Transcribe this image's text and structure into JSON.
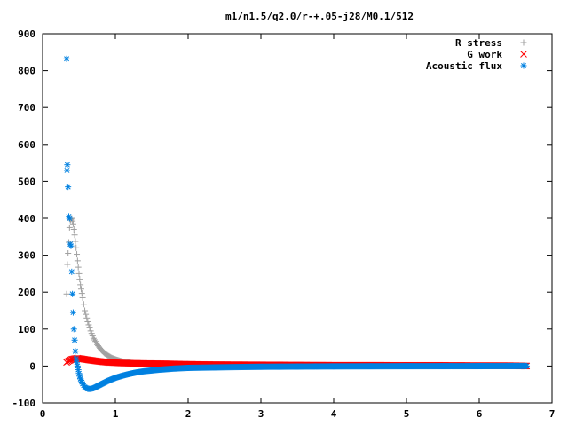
{
  "chart_data": {
    "type": "scatter",
    "title": "m1/n1.5/q2.0/r-+.05-j28/M0.1/512",
    "xlabel": "",
    "ylabel": "",
    "xlim": [
      0,
      7
    ],
    "ylim": [
      -100,
      900
    ],
    "xticks": [
      "0",
      "1",
      "2",
      "3",
      "4",
      "5",
      "6",
      "7"
    ],
    "yticks": [
      "-100",
      "0",
      "100",
      "200",
      "300",
      "400",
      "500",
      "600",
      "700",
      "800",
      "900"
    ],
    "grid": false,
    "legend_position": "top-right",
    "series": [
      {
        "name": "R stress",
        "marker": "+",
        "color": "#a0a0a0",
        "points": [
          [
            0.33,
            195
          ],
          [
            0.34,
            275
          ],
          [
            0.36,
            335
          ],
          [
            0.37,
            375
          ],
          [
            0.38,
            395
          ],
          [
            0.4,
            400
          ],
          [
            0.42,
            385
          ],
          [
            0.44,
            355
          ],
          [
            0.46,
            320
          ],
          [
            0.48,
            285
          ],
          [
            0.5,
            250
          ],
          [
            0.52,
            220
          ],
          [
            0.55,
            185
          ],
          [
            0.58,
            150
          ],
          [
            0.62,
            120
          ],
          [
            0.66,
            95
          ],
          [
            0.7,
            75
          ],
          [
            0.75,
            58
          ],
          [
            0.8,
            45
          ],
          [
            0.85,
            35
          ],
          [
            0.9,
            28
          ],
          [
            0.95,
            22
          ],
          [
            1.0,
            18
          ],
          [
            1.1,
            12
          ],
          [
            1.2,
            9
          ],
          [
            1.3,
            6
          ],
          [
            1.4,
            5
          ],
          [
            1.6,
            3
          ],
          [
            1.8,
            2
          ],
          [
            2.0,
            1.5
          ],
          [
            2.5,
            1
          ],
          [
            3.0,
            0.5
          ],
          [
            4.0,
            0.2
          ],
          [
            5.0,
            0.1
          ],
          [
            6.0,
            0.05
          ],
          [
            6.65,
            0
          ]
        ]
      },
      {
        "name": "G work",
        "marker": "x",
        "color": "#ff0000",
        "points": [
          [
            0.33,
            10
          ],
          [
            0.36,
            14
          ],
          [
            0.4,
            18
          ],
          [
            0.44,
            20
          ],
          [
            0.48,
            21
          ],
          [
            0.52,
            20
          ],
          [
            0.58,
            18
          ],
          [
            0.65,
            16
          ],
          [
            0.72,
            14
          ],
          [
            0.8,
            12
          ],
          [
            0.9,
            10
          ],
          [
            1.0,
            9
          ],
          [
            1.1,
            8
          ],
          [
            1.2,
            7.5
          ],
          [
            1.35,
            7
          ],
          [
            1.5,
            6.5
          ],
          [
            1.7,
            6
          ],
          [
            1.9,
            5
          ],
          [
            2.2,
            4
          ],
          [
            2.6,
            3.5
          ],
          [
            3.0,
            3
          ],
          [
            3.5,
            2.5
          ],
          [
            4.0,
            2
          ],
          [
            4.5,
            2
          ],
          [
            5.0,
            1.5
          ],
          [
            5.5,
            1.5
          ],
          [
            6.0,
            1
          ],
          [
            6.4,
            1
          ],
          [
            6.65,
            0
          ]
        ]
      },
      {
        "name": "Acoustic flux",
        "marker": "*",
        "color": "#0080e0",
        "points": [
          [
            0.33,
            832
          ],
          [
            0.34,
            545
          ],
          [
            0.335,
            530
          ],
          [
            0.35,
            485
          ],
          [
            0.36,
            405
          ],
          [
            0.37,
            400
          ],
          [
            0.38,
            330
          ],
          [
            0.39,
            325
          ],
          [
            0.4,
            255
          ],
          [
            0.41,
            195
          ],
          [
            0.42,
            145
          ],
          [
            0.43,
            100
          ],
          [
            0.44,
            70
          ],
          [
            0.45,
            40
          ],
          [
            0.46,
            20
          ],
          [
            0.47,
            10
          ],
          [
            0.48,
            0
          ],
          [
            0.5,
            -20
          ],
          [
            0.52,
            -35
          ],
          [
            0.55,
            -48
          ],
          [
            0.58,
            -57
          ],
          [
            0.62,
            -62
          ],
          [
            0.66,
            -62
          ],
          [
            0.7,
            -60
          ],
          [
            0.75,
            -55
          ],
          [
            0.8,
            -50
          ],
          [
            0.85,
            -45
          ],
          [
            0.9,
            -40
          ],
          [
            0.95,
            -36
          ],
          [
            1.0,
            -32
          ],
          [
            1.1,
            -26
          ],
          [
            1.2,
            -21
          ],
          [
            1.3,
            -17
          ],
          [
            1.4,
            -14
          ],
          [
            1.6,
            -10
          ],
          [
            1.8,
            -7
          ],
          [
            2.0,
            -5
          ],
          [
            2.3,
            -4
          ],
          [
            2.6,
            -3
          ],
          [
            3.0,
            -2
          ],
          [
            3.5,
            -1.5
          ],
          [
            4.0,
            -1
          ],
          [
            5.0,
            -0.5
          ],
          [
            6.0,
            -0.3
          ],
          [
            6.65,
            0
          ]
        ]
      }
    ]
  }
}
